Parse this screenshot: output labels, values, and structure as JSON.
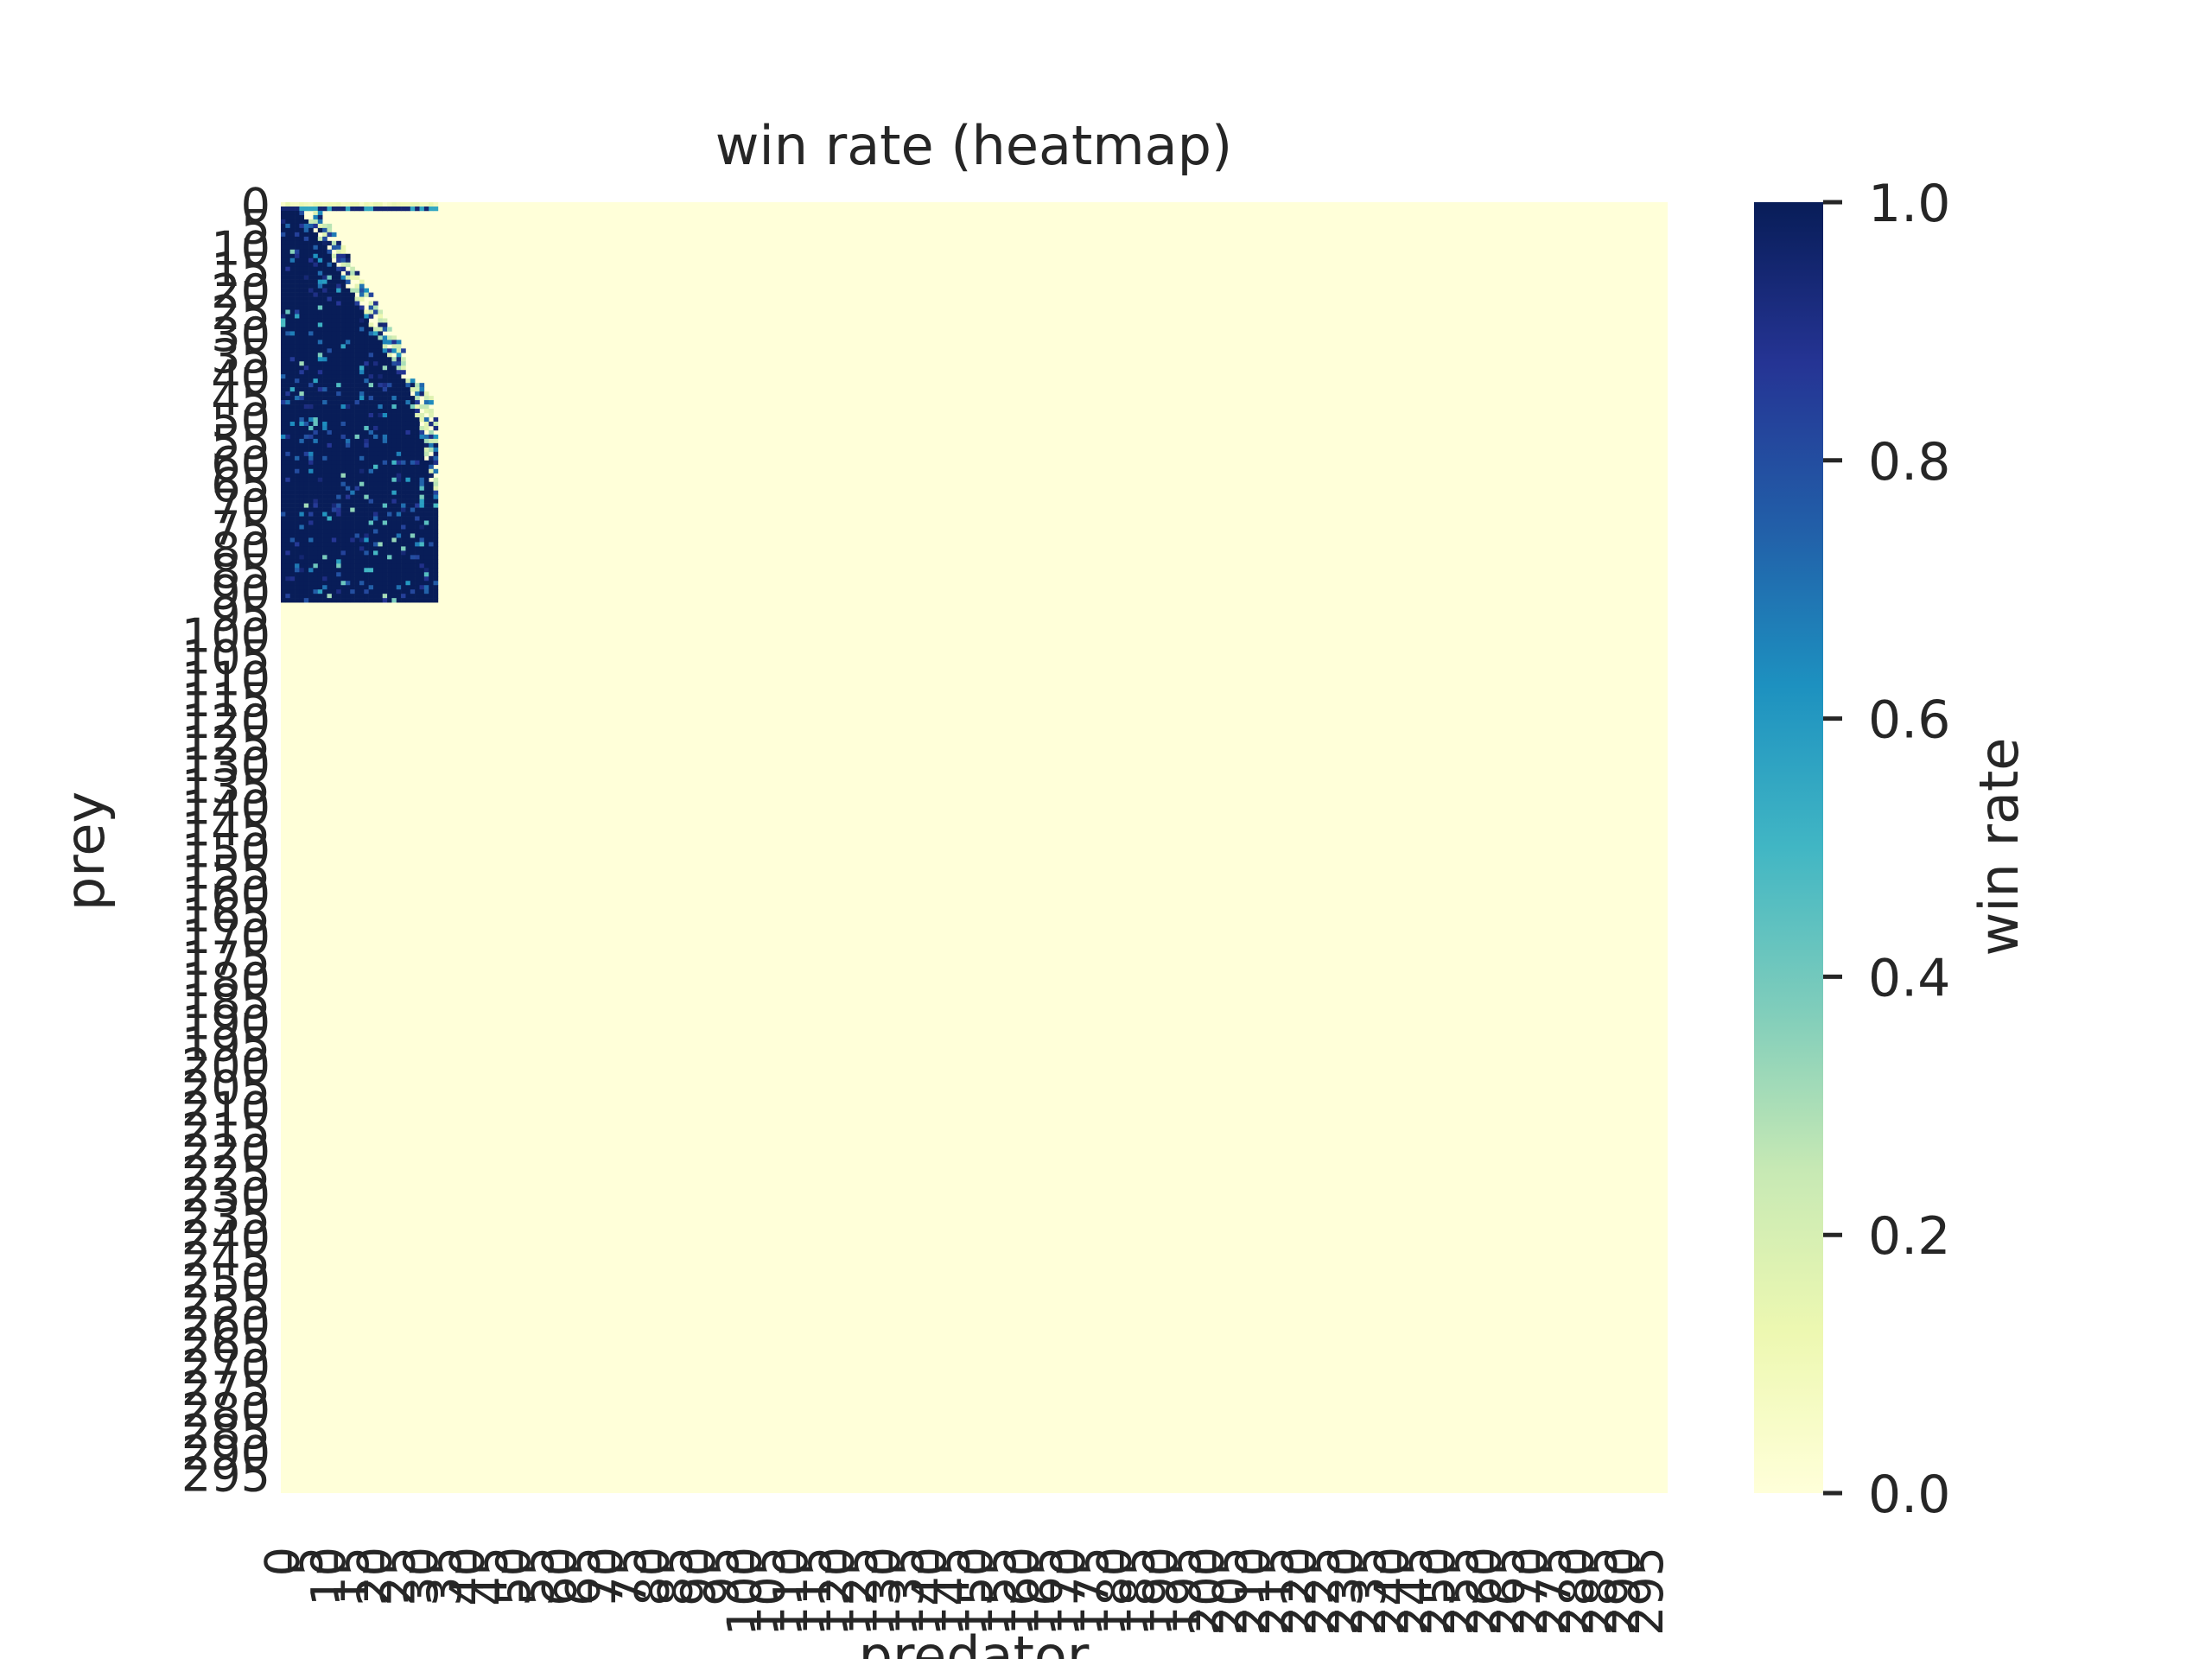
{
  "chart_data": {
    "type": "heatmap",
    "title": "win rate (heatmap)",
    "xlabel": "predator",
    "ylabel": "prey",
    "colorbar_label": "win rate",
    "colormap": "YlGnBu",
    "colormap_stops": [
      "#ffffd9",
      "#edf8b1",
      "#c7e9b4",
      "#7fcdbb",
      "#41b6c4",
      "#1d91c0",
      "#225ea8",
      "#253494",
      "#081d58"
    ],
    "vmin": 0.0,
    "vmax": 1.0,
    "colorbar_ticks": [
      "0.0",
      "0.2",
      "0.4",
      "0.6",
      "0.8",
      "1.0"
    ],
    "n_rows": 300,
    "n_cols": 300,
    "y_tick_labels": [
      "0",
      "5",
      "10",
      "15",
      "20",
      "25",
      "30",
      "35",
      "40",
      "45",
      "50",
      "55",
      "60",
      "65",
      "70",
      "75",
      "80",
      "85",
      "90",
      "95",
      "100",
      "105",
      "110",
      "115",
      "120",
      "125",
      "130",
      "135",
      "140",
      "145",
      "150",
      "155",
      "160",
      "165",
      "170",
      "175",
      "180",
      "185",
      "190",
      "195",
      "200",
      "205",
      "210",
      "215",
      "220",
      "225",
      "230",
      "235",
      "240",
      "245",
      "250",
      "255",
      "260",
      "265",
      "270",
      "275",
      "280",
      "285",
      "290",
      "295"
    ],
    "x_tick_labels": [
      "0",
      "5",
      "10",
      "15",
      "20",
      "25",
      "30",
      "35",
      "40",
      "45",
      "50",
      "55",
      "60",
      "65",
      "70",
      "75",
      "80",
      "85",
      "90",
      "95",
      "100",
      "105",
      "110",
      "115",
      "120",
      "125",
      "130",
      "135",
      "140",
      "145",
      "150",
      "155",
      "160",
      "165",
      "170",
      "175",
      "180",
      "185",
      "190",
      "195",
      "200",
      "205",
      "210",
      "215",
      "220",
      "225",
      "230",
      "235",
      "240",
      "245",
      "250",
      "255",
      "260",
      "265",
      "270",
      "275",
      "280",
      "285",
      "290",
      "295"
    ],
    "background_value": 0.0,
    "active_block": {
      "rows": [
        0,
        92
      ],
      "cols": [
        0,
        33
      ],
      "typical_value": 1.0
    },
    "note_regions": [
      {
        "rows": [
          1,
          1
        ],
        "cols": [
          0,
          33
        ],
        "value": 0.9
      },
      {
        "rows": [
          2,
          8
        ],
        "cols": [
          3,
          6
        ],
        "value": 0.2
      },
      {
        "rows": [
          8,
          40
        ],
        "cols": [
          10,
          25
        ],
        "value": 0.3
      },
      {
        "rows": [
          40,
          92
        ],
        "cols": [
          25,
          33
        ],
        "value": 0.9
      }
    ]
  }
}
